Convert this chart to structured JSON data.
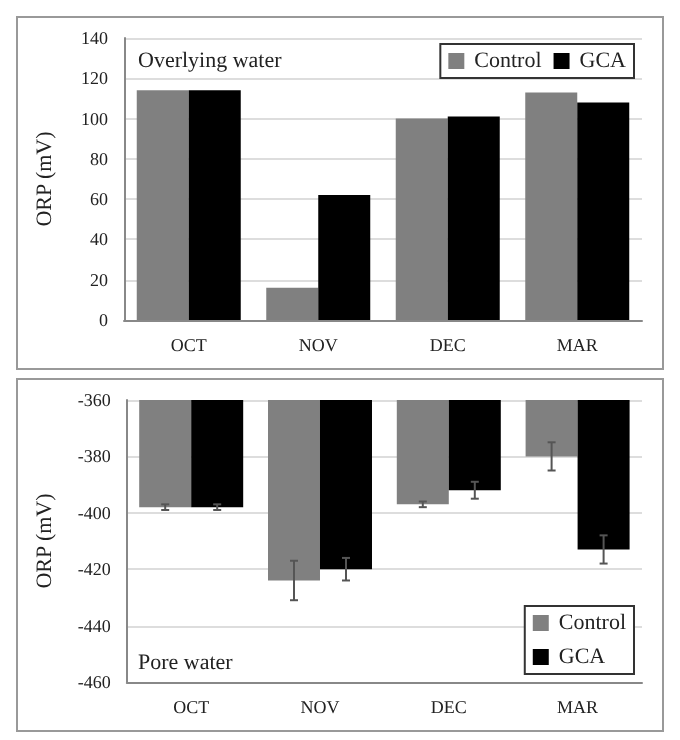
{
  "chart_data": [
    {
      "type": "bar",
      "ylabel": "ORP (mV)",
      "annotations": [
        "Overlying water"
      ],
      "categories": [
        "OCT",
        "NOV",
        "DEC",
        "MAR"
      ],
      "series": [
        {
          "name": "Control",
          "color": "#808080",
          "values": [
            114,
            16,
            100,
            113
          ]
        },
        {
          "name": "GCA",
          "color": "#000000",
          "values": [
            114,
            62,
            101,
            108
          ]
        }
      ],
      "ylim": [
        0,
        140
      ],
      "yticks": [
        0,
        20,
        40,
        60,
        80,
        100,
        120,
        140
      ],
      "grid": "y",
      "legend": "top right"
    },
    {
      "type": "bar",
      "ylabel": "ORP (mV)",
      "annotations": [
        "Pore water"
      ],
      "categories": [
        "OCT",
        "NOV",
        "DEC",
        "MAR"
      ],
      "series": [
        {
          "name": "Control",
          "color": "#808080",
          "values": [
            -398,
            -424,
            -397,
            -380
          ],
          "errors": [
            1,
            7,
            1,
            5
          ]
        },
        {
          "name": "GCA",
          "color": "#000000",
          "values": [
            -398,
            -420,
            -392,
            -413
          ],
          "errors": [
            1,
            4,
            3,
            5
          ]
        }
      ],
      "ylim": [
        -460,
        -360
      ],
      "yticks": [
        -460,
        -440,
        -420,
        -400,
        -380,
        -360
      ],
      "grid": "y",
      "legend": "bottom right"
    }
  ]
}
